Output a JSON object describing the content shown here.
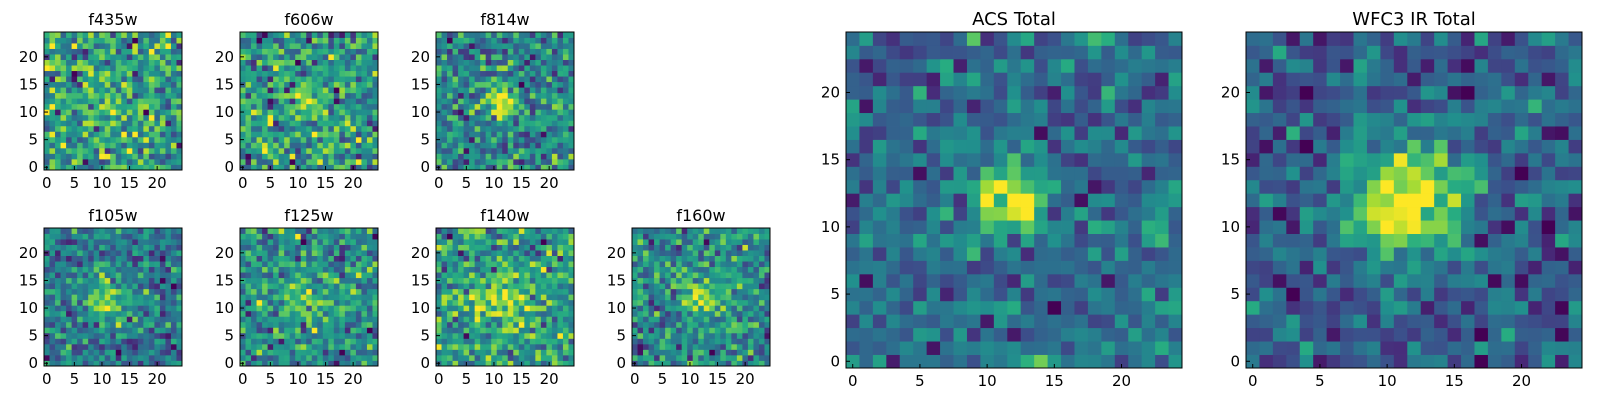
{
  "figure": {
    "description_title": ""
  },
  "chart_data": [
    {
      "type": "heatmap",
      "title": "f435w",
      "size": 25,
      "xticks": [
        0,
        5,
        10,
        15,
        20
      ],
      "yticks": [
        0,
        5,
        10,
        15,
        20
      ],
      "xlim": [
        0,
        25
      ],
      "ylim": [
        0,
        25
      ],
      "colormap": "viridis",
      "seed": 11,
      "noise": 1.0,
      "blob": {
        "cx": 11.5,
        "cy": 12.5,
        "sigma": 2.3,
        "amp": 0.55
      }
    },
    {
      "type": "heatmap",
      "title": "f606w",
      "size": 25,
      "xticks": [
        0,
        5,
        10,
        15,
        20
      ],
      "yticks": [
        0,
        5,
        10,
        15,
        20
      ],
      "xlim": [
        0,
        25
      ],
      "ylim": [
        0,
        25
      ],
      "colormap": "viridis",
      "seed": 23,
      "noise": 1.0,
      "blob": {
        "cx": 12.0,
        "cy": 12.5,
        "sigma": 2.2,
        "amp": 0.7
      }
    },
    {
      "type": "heatmap",
      "title": "f814w",
      "size": 25,
      "xticks": [
        0,
        5,
        10,
        15,
        20
      ],
      "yticks": [
        0,
        5,
        10,
        15,
        20
      ],
      "xlim": [
        0,
        25
      ],
      "ylim": [
        0,
        25
      ],
      "colormap": "viridis",
      "seed": 37,
      "noise": 1.0,
      "blob": {
        "cx": 12.0,
        "cy": 12.5,
        "sigma": 1.8,
        "amp": 1.4
      }
    },
    {
      "type": "heatmap",
      "title": "f105w",
      "size": 25,
      "xticks": [
        0,
        5,
        10,
        15,
        20
      ],
      "yticks": [
        0,
        5,
        10,
        15,
        20
      ],
      "xlim": [
        0,
        25
      ],
      "ylim": [
        0,
        25
      ],
      "colormap": "viridis",
      "seed": 41,
      "noise": 0.9,
      "blob": {
        "cx": 12.0,
        "cy": 12.0,
        "sigma": 2.8,
        "amp": 1.2
      }
    },
    {
      "type": "heatmap",
      "title": "f125w",
      "size": 25,
      "xticks": [
        0,
        5,
        10,
        15,
        20
      ],
      "yticks": [
        0,
        5,
        10,
        15,
        20
      ],
      "xlim": [
        0,
        25
      ],
      "ylim": [
        0,
        25
      ],
      "colormap": "viridis",
      "seed": 53,
      "noise": 1.0,
      "blob": {
        "cx": 12.0,
        "cy": 12.0,
        "sigma": 3.2,
        "amp": 0.6
      }
    },
    {
      "type": "heatmap",
      "title": "f140w",
      "size": 25,
      "xticks": [
        0,
        5,
        10,
        15,
        20
      ],
      "yticks": [
        0,
        5,
        10,
        15,
        20
      ],
      "xlim": [
        0,
        25
      ],
      "ylim": [
        0,
        25
      ],
      "colormap": "viridis",
      "seed": 67,
      "noise": 1.0,
      "blob": {
        "cx": 12.0,
        "cy": 12.0,
        "sigma": 3.0,
        "amp": 0.8
      }
    },
    {
      "type": "heatmap",
      "title": "f160w",
      "size": 25,
      "xticks": [
        0,
        5,
        10,
        15,
        20
      ],
      "yticks": [
        0,
        5,
        10,
        15,
        20
      ],
      "xlim": [
        0,
        25
      ],
      "ylim": [
        0,
        25
      ],
      "colormap": "viridis",
      "seed": 79,
      "noise": 0.9,
      "blob": {
        "cx": 12.5,
        "cy": 12.5,
        "sigma": 2.4,
        "amp": 1.2
      }
    },
    {
      "type": "heatmap",
      "title": "ACS Total",
      "size": 25,
      "xticks": [
        0,
        5,
        10,
        15,
        20
      ],
      "yticks": [
        0,
        5,
        10,
        15,
        20
      ],
      "xlim": [
        0,
        25
      ],
      "ylim": [
        0,
        25
      ],
      "colormap": "viridis",
      "seed": 97,
      "noise": 0.8,
      "blob": {
        "cx": 12.0,
        "cy": 12.5,
        "sigma": 1.8,
        "amp": 1.8
      }
    },
    {
      "type": "heatmap",
      "title": "WFC3 IR Total",
      "size": 25,
      "xticks": [
        0,
        5,
        10,
        15,
        20
      ],
      "yticks": [
        0,
        5,
        10,
        15,
        20
      ],
      "xlim": [
        0,
        25
      ],
      "ylim": [
        0,
        25
      ],
      "colormap": "viridis",
      "seed": 131,
      "noise": 0.6,
      "blob": {
        "cx": 12.0,
        "cy": 12.5,
        "sigma": 2.8,
        "amp": 1.7
      }
    }
  ]
}
